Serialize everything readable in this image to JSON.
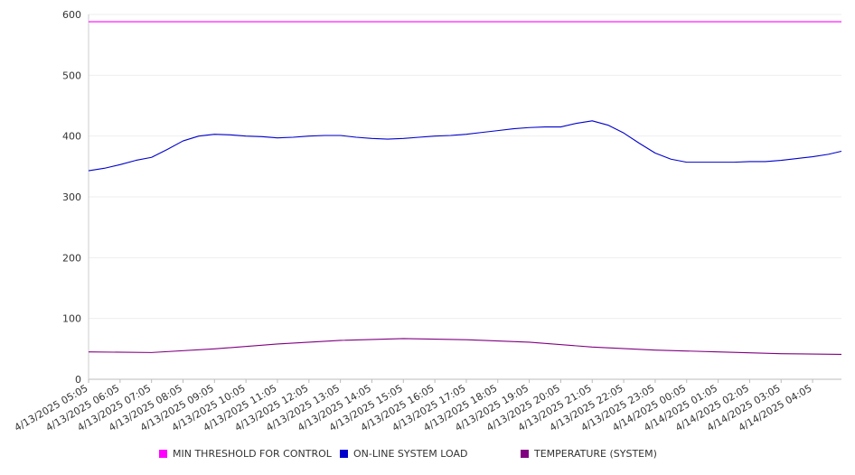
{
  "chart_data": {
    "type": "line",
    "ylim": [
      0,
      600
    ],
    "yticks": [
      0,
      100,
      200,
      300,
      400,
      500,
      600
    ],
    "categories": [
      "4/13/2025 05:05",
      "4/13/2025 06:05",
      "4/13/2025 07:05",
      "4/13/2025 08:05",
      "4/13/2025 09:05",
      "4/13/2025 10:05",
      "4/13/2025 11:05",
      "4/13/2025 12:05",
      "4/13/2025 13:05",
      "4/13/2025 14:05",
      "4/13/2025 15:05",
      "4/13/2025 16:05",
      "4/13/2025 17:05",
      "4/13/2025 18:05",
      "4/13/2025 19:05",
      "4/13/2025 20:05",
      "4/13/2025 21:05",
      "4/13/2025 22:05",
      "4/13/2025 23:05",
      "4/14/2025 00:05",
      "4/14/2025 01:05",
      "4/14/2025 02:05",
      "4/14/2025 03:05",
      "4/14/2025 04:05"
    ],
    "x_end": "4/14/2025 05:00",
    "grid": true,
    "legend_position": "bottom",
    "series": [
      {
        "name": "MIN THRESHOLD FOR CONTROL",
        "color": "#ff00ff",
        "x": [
          "4/13/2025 05:05",
          "4/14/2025 05:00"
        ],
        "values": [
          588,
          588
        ]
      },
      {
        "name": "ON-LINE SYSTEM LOAD",
        "color": "#0000cc",
        "x": [
          "4/13/2025 05:05",
          "4/13/2025 05:35",
          "4/13/2025 06:05",
          "4/13/2025 06:35",
          "4/13/2025 07:05",
          "4/13/2025 07:35",
          "4/13/2025 08:05",
          "4/13/2025 08:35",
          "4/13/2025 09:05",
          "4/13/2025 09:35",
          "4/13/2025 10:05",
          "4/13/2025 10:35",
          "4/13/2025 11:05",
          "4/13/2025 11:35",
          "4/13/2025 12:05",
          "4/13/2025 12:35",
          "4/13/2025 13:05",
          "4/13/2025 13:35",
          "4/13/2025 14:05",
          "4/13/2025 14:35",
          "4/13/2025 15:05",
          "4/13/2025 15:35",
          "4/13/2025 16:05",
          "4/13/2025 16:35",
          "4/13/2025 17:05",
          "4/13/2025 17:35",
          "4/13/2025 18:05",
          "4/13/2025 18:35",
          "4/13/2025 19:05",
          "4/13/2025 19:35",
          "4/13/2025 20:05",
          "4/13/2025 20:35",
          "4/13/2025 21:05",
          "4/13/2025 21:35",
          "4/13/2025 22:05",
          "4/13/2025 22:35",
          "4/13/2025 23:05",
          "4/13/2025 23:35",
          "4/14/2025 00:05",
          "4/14/2025 00:35",
          "4/14/2025 01:05",
          "4/14/2025 01:35",
          "4/14/2025 02:05",
          "4/14/2025 02:35",
          "4/14/2025 03:05",
          "4/14/2025 03:35",
          "4/14/2025 04:05",
          "4/14/2025 04:35",
          "4/14/2025 05:00"
        ],
        "values": [
          343,
          347,
          353,
          360,
          365,
          378,
          392,
          400,
          403,
          402,
          400,
          399,
          397,
          398,
          400,
          401,
          401,
          398,
          396,
          395,
          396,
          398,
          400,
          401,
          403,
          406,
          409,
          412,
          414,
          415,
          415,
          421,
          425,
          418,
          405,
          388,
          372,
          362,
          357,
          357,
          357,
          357,
          358,
          358,
          360,
          363,
          366,
          370,
          375
        ]
      },
      {
        "name": "TEMPERATURE (SYSTEM)",
        "color": "#800080",
        "x": [
          "4/13/2025 05:05",
          "4/13/2025 07:05",
          "4/13/2025 09:05",
          "4/13/2025 11:05",
          "4/13/2025 13:05",
          "4/13/2025 15:05",
          "4/13/2025 17:05",
          "4/13/2025 19:05",
          "4/13/2025 21:05",
          "4/13/2025 23:05",
          "4/14/2025 01:05",
          "4/14/2025 03:05",
          "4/14/2025 05:00"
        ],
        "values": [
          45,
          44,
          50,
          58,
          64,
          67,
          65,
          61,
          53,
          48,
          45,
          42,
          41
        ]
      }
    ]
  },
  "legend": {
    "items": [
      {
        "label": "MIN THRESHOLD FOR CONTROL",
        "color": "#ff00ff"
      },
      {
        "label": "ON-LINE SYSTEM LOAD",
        "color": "#0000cc"
      },
      {
        "label": "TEMPERATURE (SYSTEM)",
        "color": "#800080"
      }
    ]
  }
}
